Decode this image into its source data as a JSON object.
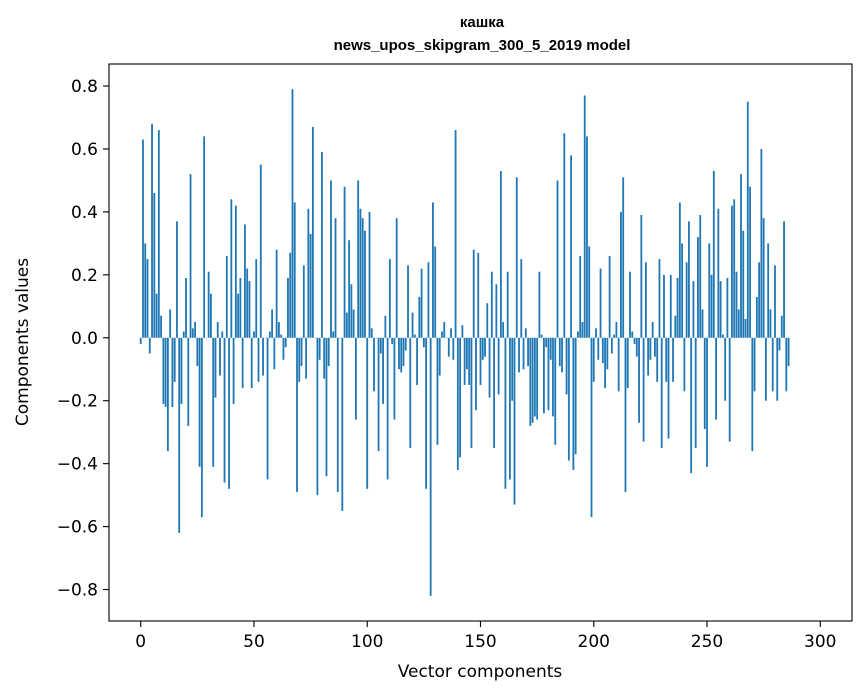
{
  "chart_data": {
    "type": "bar",
    "title": "кашка",
    "subtitle": "news_upos_skipgram_300_5_2019 model",
    "xlabel": "Vector components",
    "ylabel": "Components values",
    "xlim": [
      -14,
      314
    ],
    "ylim": [
      -0.9,
      0.87
    ],
    "xticks": [
      0,
      50,
      100,
      150,
      200,
      250,
      300
    ],
    "xtick_labels": [
      "0",
      "50",
      "100",
      "150",
      "200",
      "250",
      "300"
    ],
    "yticks": [
      -0.8,
      -0.6,
      -0.4,
      -0.2,
      0.0,
      0.2,
      0.4,
      0.6,
      0.8
    ],
    "ytick_labels": [
      "−0.8",
      "−0.6",
      "−0.4",
      "−0.2",
      "0.0",
      "0.2",
      "0.4",
      "0.6",
      "0.8"
    ],
    "grid": false,
    "series": [
      {
        "name": "кашка",
        "color": "#1f77b4",
        "values": [
          -0.02,
          0.63,
          0.3,
          0.25,
          -0.05,
          0.68,
          0.46,
          0.14,
          0.66,
          0.07,
          -0.21,
          -0.22,
          -0.36,
          0.09,
          -0.22,
          -0.14,
          0.37,
          -0.62,
          -0.21,
          0.02,
          0.19,
          -0.28,
          0.52,
          0.03,
          0.05,
          -0.09,
          -0.41,
          -0.57,
          0.64,
          0.0,
          0.21,
          0.14,
          -0.41,
          -0.19,
          0.05,
          -0.12,
          0.02,
          -0.46,
          0.26,
          -0.48,
          0.44,
          -0.21,
          0.42,
          0.14,
          0.19,
          -0.16,
          0.36,
          0.22,
          0.18,
          -0.16,
          0.02,
          0.25,
          -0.14,
          0.55,
          -0.12,
          0.0,
          -0.45,
          0.02,
          0.09,
          -0.1,
          0.28,
          0.05,
          0.01,
          -0.07,
          -0.03,
          0.19,
          0.27,
          0.79,
          0.43,
          -0.49,
          -0.14,
          -0.09,
          0.23,
          -0.13,
          0.41,
          0.33,
          0.67,
          0.0,
          -0.5,
          -0.07,
          0.59,
          -0.13,
          -0.44,
          -0.09,
          0.5,
          0.02,
          0.38,
          -0.49,
          0.0,
          -0.55,
          0.48,
          0.08,
          0.31,
          0.17,
          0.09,
          -0.26,
          0.5,
          0.41,
          0.38,
          0.34,
          -0.48,
          0.4,
          0.03,
          -0.17,
          0.0,
          -0.36,
          -0.05,
          -0.21,
          0.07,
          -0.45,
          0.25,
          -0.02,
          -0.26,
          0.38,
          -0.1,
          -0.11,
          -0.09,
          -0.04,
          0.23,
          -0.35,
          0.08,
          0.01,
          -0.15,
          0.13,
          0.22,
          -0.03,
          -0.48,
          0.24,
          -0.82,
          0.43,
          0.29,
          -0.34,
          -0.12,
          0.02,
          0.05,
          0.0,
          -0.06,
          0.03,
          -0.07,
          0.66,
          -0.42,
          -0.38,
          0.04,
          -0.15,
          -0.1,
          -0.15,
          -0.35,
          0.28,
          -0.23,
          0.27,
          -0.15,
          -0.07,
          -0.06,
          0.11,
          -0.19,
          0.21,
          -0.35,
          0.17,
          -0.18,
          0.53,
          0.05,
          -0.48,
          0.21,
          -0.45,
          -0.2,
          -0.53,
          0.51,
          -0.11,
          0.25,
          -0.1,
          0.03,
          -0.09,
          -0.28,
          -0.27,
          -0.25,
          -0.26,
          0.21,
          0.01,
          -0.24,
          -0.03,
          -0.23,
          -0.07,
          -0.25,
          -0.34,
          0.5,
          -0.09,
          -0.11,
          0.65,
          -0.18,
          -0.39,
          0.58,
          -0.42,
          -0.37,
          0.02,
          0.26,
          0.05,
          0.77,
          0.64,
          0.29,
          -0.57,
          -0.14,
          0.03,
          -0.07,
          0.22,
          -0.08,
          -0.16,
          -0.1,
          0.26,
          -0.05,
          0.01,
          0.05,
          -0.17,
          0.4,
          0.51,
          -0.49,
          -0.16,
          0.21,
          0.02,
          -0.02,
          -0.06,
          -0.27,
          0.39,
          -0.33,
          0.24,
          -0.12,
          -0.07,
          0.05,
          -0.06,
          -0.14,
          0.25,
          -0.35,
          0.2,
          -0.14,
          -0.32,
          0.2,
          -0.14,
          0.07,
          0.19,
          0.43,
          0.3,
          -0.17,
          0.24,
          0.37,
          -0.43,
          0.18,
          -0.35,
          0.32,
          0.39,
          0.09,
          -0.29,
          -0.41,
          0.3,
          0.2,
          0.53,
          -0.26,
          0.41,
          0.18,
          0.01,
          -0.2,
          0.19,
          -0.33,
          0.42,
          0.44,
          0.21,
          0.09,
          0.52,
          0.34,
          0.06,
          0.75,
          0.48,
          -0.36,
          -0.17,
          0.13,
          0.24,
          0.6,
          0.38,
          -0.2,
          0.3,
          0.09,
          -0.17,
          0.23,
          -0.2,
          -0.04,
          0.07,
          0.37,
          -0.17,
          -0.09
        ]
      }
    ]
  }
}
